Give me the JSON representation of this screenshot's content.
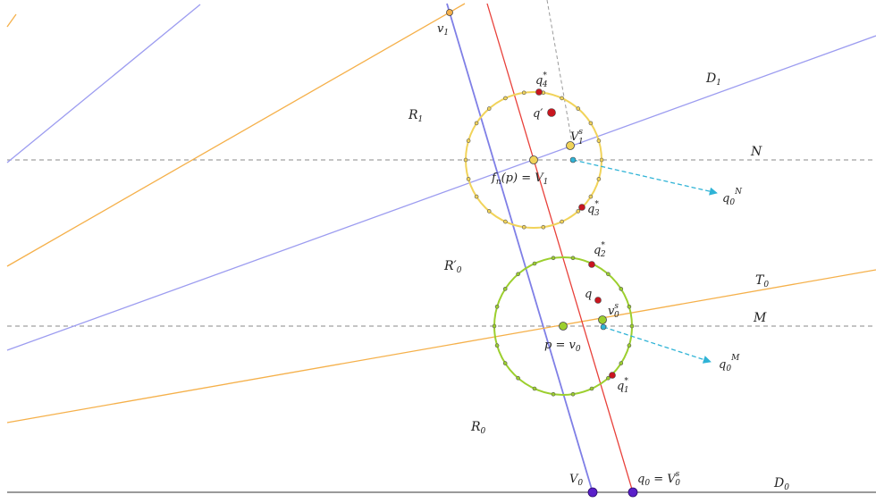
{
  "colors": {
    "blue_line": "#9c9cf0",
    "orange_line": "#f5b04a",
    "red_line": "#e8403a",
    "dashed_gray": "#8a8a8a",
    "dashed_arrow": "#2fb3d6",
    "yellow_circle": "#f1d35a",
    "green_circle": "#9ccf2e",
    "vertex_purple": "#5a1fc9",
    "point_red": "#c8161f",
    "baseline": "#9a9a9a"
  },
  "labels": {
    "v1": "v",
    "v1_sub": "1",
    "q4": "q",
    "q4_sup": "*",
    "q4_sub": "4",
    "qprime": "q′",
    "R1": "R",
    "R1_sub": "1",
    "D1": "D",
    "D1_sub": "1",
    "V1s": "V",
    "V1s_sup": "s",
    "V1s_sub": "1",
    "N": "N",
    "fnp": "f",
    "fnp_sub": "n",
    "fnp_rest": "(p) = V",
    "fnp_sub2": "1",
    "q0N": "q",
    "q0N_sub": "0",
    "q0N_sup": "N",
    "q3": "q",
    "q3_sup": "*",
    "q3_sub": "3",
    "q2": "q",
    "q2_sup": "*",
    "q2_sub": "2",
    "R0prime": "R′",
    "R0prime_sub": "0",
    "T0": "T",
    "T0_sub": "0",
    "q": "q",
    "v0s": "v",
    "v0s_sup": "s",
    "v0s_sub": "0",
    "M": "M",
    "p_v0": "p = v",
    "p_v0_sub": "0",
    "q0M": "q",
    "q0M_sub": "0",
    "q0M_sup": "M",
    "q1": "q",
    "q1_sup": "*",
    "q1_sub": "1",
    "R0": "R",
    "R0_sub": "0",
    "V0": "V",
    "V0_sub": "0",
    "q0_V0s": "q",
    "q0_V0s_sub": "0",
    "q0_V0s_rest": " = V",
    "q0_V0s_sup": "s",
    "q0_V0s_sub2": "0",
    "D0": "D",
    "D0_sub": "0"
  }
}
